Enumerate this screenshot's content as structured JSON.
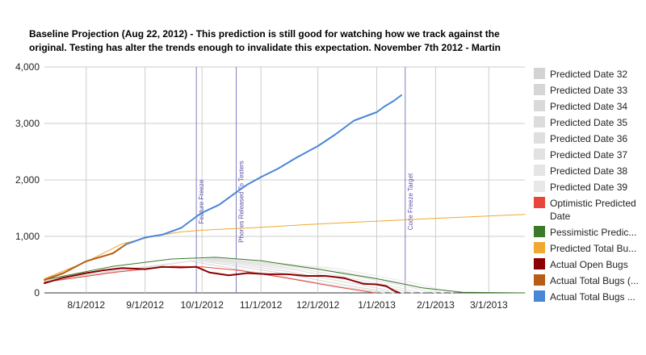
{
  "chart_data": {
    "type": "line",
    "title_lines": [
      "Baseline Projection (Aug 22, 2012) - This prediction is still good for watching how we track against the",
      "original. Testing has alter the trends enough to invalidate this expectation. November 7th 2012 - Martin"
    ],
    "xlabel": "",
    "ylabel": "",
    "x_range": [
      "2012-07-10",
      "2013-03-20"
    ],
    "ylim": [
      0,
      4000
    ],
    "y_ticks": [
      0,
      1000,
      2000,
      3000,
      4000
    ],
    "y_tick_labels": [
      "0",
      "1,000",
      "2,000",
      "3,000",
      "4,000"
    ],
    "x_ticks": [
      "2012-08-01",
      "2012-09-01",
      "2012-10-01",
      "2012-11-01",
      "2012-12-01",
      "2013-01-01",
      "2013-02-01",
      "2013-03-01"
    ],
    "x_tick_labels": [
      "8/1/2012",
      "9/1/2012",
      "10/1/2012",
      "11/1/2012",
      "12/1/2012",
      "1/1/2013",
      "2/1/2013",
      "3/1/2013"
    ],
    "grid": true,
    "legend_position": "right",
    "annotations": [
      {
        "date": "2012-09-28",
        "label": "Feature Freeze",
        "color": "#7f7fbf"
      },
      {
        "date": "2012-10-19",
        "label": "Phones Released To Testers",
        "color": "#7f7fbf"
      },
      {
        "date": "2013-01-16",
        "label": "Code Freeze Target",
        "color": "#7f7fbf"
      }
    ],
    "series": [
      {
        "name": "Predicted Date 32",
        "color": "#d3d3d3",
        "width": 1,
        "points": [
          [
            "2012-07-10",
            200
          ],
          [
            "2012-09-25",
            560
          ],
          [
            "2012-11-01",
            350
          ],
          [
            "2012-12-15",
            100
          ],
          [
            "2013-01-05",
            0
          ]
        ]
      },
      {
        "name": "Predicted Date 33",
        "color": "#d6d6d6",
        "width": 1,
        "points": [
          [
            "2012-07-10",
            210
          ],
          [
            "2012-09-28",
            580
          ],
          [
            "2012-11-10",
            360
          ],
          [
            "2012-12-20",
            110
          ],
          [
            "2013-01-10",
            0
          ]
        ]
      },
      {
        "name": "Predicted Date 34",
        "color": "#d9d9d9",
        "width": 1,
        "points": [
          [
            "2012-07-10",
            215
          ],
          [
            "2012-10-01",
            590
          ],
          [
            "2012-11-15",
            380
          ],
          [
            "2012-12-25",
            130
          ],
          [
            "2013-01-15",
            0
          ]
        ]
      },
      {
        "name": "Predicted Date 35",
        "color": "#dcdcdc",
        "width": 1,
        "points": [
          [
            "2012-07-10",
            220
          ],
          [
            "2012-10-02",
            600
          ],
          [
            "2012-11-20",
            400
          ],
          [
            "2013-01-01",
            140
          ],
          [
            "2013-01-20",
            0
          ]
        ]
      },
      {
        "name": "Predicted Date 36",
        "color": "#dfdfdf",
        "width": 1,
        "points": [
          [
            "2012-07-10",
            225
          ],
          [
            "2012-10-04",
            605
          ],
          [
            "2012-11-25",
            410
          ],
          [
            "2013-01-05",
            150
          ],
          [
            "2013-01-25",
            0
          ]
        ]
      },
      {
        "name": "Predicted Date 37",
        "color": "#e2e2e2",
        "width": 1,
        "points": [
          [
            "2012-07-10",
            230
          ],
          [
            "2012-10-05",
            610
          ],
          [
            "2012-12-01",
            420
          ],
          [
            "2013-01-10",
            160
          ],
          [
            "2013-02-01",
            0
          ]
        ]
      },
      {
        "name": "Predicted Date 38",
        "color": "#e5e5e5",
        "width": 1,
        "points": [
          [
            "2012-07-10",
            230
          ],
          [
            "2012-10-06",
            615
          ],
          [
            "2012-12-05",
            430
          ],
          [
            "2013-01-15",
            170
          ],
          [
            "2013-02-05",
            0
          ]
        ]
      },
      {
        "name": "Predicted Date 39",
        "color": "#e8e8e8",
        "width": 1,
        "points": [
          [
            "2012-07-10",
            235
          ],
          [
            "2012-10-07",
            620
          ],
          [
            "2012-12-10",
            440
          ],
          [
            "2013-01-20",
            180
          ],
          [
            "2013-02-10",
            0
          ]
        ]
      },
      {
        "name": "Optimistic Predicted Date",
        "legend_lines": [
          "Optimistic Predicted",
          "Date"
        ],
        "color": "#e8463a",
        "width": 1,
        "points": [
          [
            "2012-07-10",
            190
          ],
          [
            "2012-08-15",
            360
          ],
          [
            "2012-09-15",
            470
          ],
          [
            "2012-10-01",
            460
          ],
          [
            "2012-10-20",
            400
          ],
          [
            "2012-11-15",
            260
          ],
          [
            "2012-12-10",
            110
          ],
          [
            "2012-12-31",
            0
          ]
        ]
      },
      {
        "name": "Pessimistic Predicted Date",
        "legend_lines": [
          "Pessimistic Predic..."
        ],
        "color": "#3a7a2a",
        "width": 1,
        "points": [
          [
            "2012-07-10",
            230
          ],
          [
            "2012-08-15",
            470
          ],
          [
            "2012-09-15",
            600
          ],
          [
            "2012-10-08",
            630
          ],
          [
            "2012-11-01",
            570
          ],
          [
            "2012-12-01",
            420
          ],
          [
            "2013-01-01",
            250
          ],
          [
            "2013-01-25",
            90
          ],
          [
            "2013-02-15",
            10
          ],
          [
            "2013-03-20",
            0
          ]
        ]
      },
      {
        "name": "Predicted Total Bugs",
        "legend_lines": [
          "Predicted Total Bu..."
        ],
        "color": "#f0a830",
        "width": 1,
        "points": [
          [
            "2012-07-10",
            250
          ],
          [
            "2012-08-01",
            550
          ],
          [
            "2012-08-20",
            870
          ],
          [
            "2012-09-05",
            1000
          ],
          [
            "2012-09-20",
            1080
          ],
          [
            "2012-10-01",
            1110
          ],
          [
            "2012-11-01",
            1160
          ],
          [
            "2012-12-01",
            1220
          ],
          [
            "2013-01-01",
            1270
          ],
          [
            "2013-02-01",
            1320
          ],
          [
            "2013-03-20",
            1390
          ]
        ]
      },
      {
        "name": "Actual Open Bugs",
        "legend_lines": [
          "Actual Open Bugs"
        ],
        "color": "#8b0000",
        "width": 2,
        "points": [
          [
            "2012-07-10",
            170
          ],
          [
            "2012-07-20",
            270
          ],
          [
            "2012-08-01",
            350
          ],
          [
            "2012-08-10",
            400
          ],
          [
            "2012-08-20",
            440
          ],
          [
            "2012-09-01",
            420
          ],
          [
            "2012-09-10",
            460
          ],
          [
            "2012-09-20",
            450
          ],
          [
            "2012-09-28",
            460
          ],
          [
            "2012-10-05",
            360
          ],
          [
            "2012-10-15",
            310
          ],
          [
            "2012-10-25",
            350
          ],
          [
            "2012-11-05",
            330
          ],
          [
            "2012-11-15",
            330
          ],
          [
            "2012-11-25",
            300
          ],
          [
            "2012-12-05",
            300
          ],
          [
            "2012-12-15",
            260
          ],
          [
            "2012-12-25",
            160
          ],
          [
            "2013-01-01",
            150
          ],
          [
            "2013-01-06",
            120
          ],
          [
            "2013-01-10",
            40
          ],
          [
            "2013-01-13",
            0
          ]
        ]
      },
      {
        "name": "Actual Total Bugs (Trend)",
        "legend_lines": [
          "Actual Total Bugs (..."
        ],
        "color": "#b85c18",
        "width": 2,
        "points": [
          [
            "2012-07-10",
            230
          ],
          [
            "2012-07-20",
            350
          ],
          [
            "2012-08-01",
            560
          ],
          [
            "2012-08-15",
            700
          ],
          [
            "2012-08-22",
            860
          ]
        ]
      },
      {
        "name": "Actual Total Bugs",
        "legend_lines": [
          "Actual Total Bugs ..."
        ],
        "color": "#4a86d8",
        "width": 2,
        "points": [
          [
            "2012-08-22",
            860
          ],
          [
            "2012-09-01",
            980
          ],
          [
            "2012-09-10",
            1030
          ],
          [
            "2012-09-20",
            1150
          ],
          [
            "2012-09-28",
            1350
          ],
          [
            "2012-10-01",
            1420
          ],
          [
            "2012-10-10",
            1560
          ],
          [
            "2012-10-19",
            1780
          ],
          [
            "2012-10-25",
            1920
          ],
          [
            "2012-11-01",
            2050
          ],
          [
            "2012-11-10",
            2200
          ],
          [
            "2012-11-20",
            2400
          ],
          [
            "2012-12-01",
            2600
          ],
          [
            "2012-12-10",
            2800
          ],
          [
            "2012-12-20",
            3050
          ],
          [
            "2013-01-01",
            3200
          ],
          [
            "2013-01-05",
            3300
          ],
          [
            "2013-01-10",
            3400
          ],
          [
            "2013-01-14",
            3500
          ]
        ]
      }
    ]
  }
}
